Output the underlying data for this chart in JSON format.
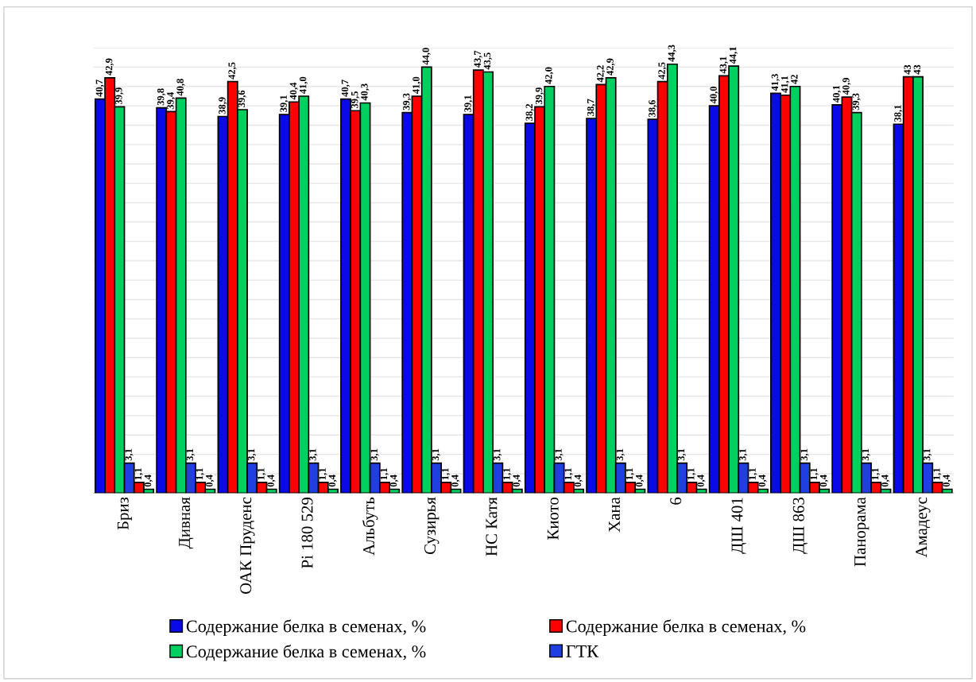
{
  "chart_data": {
    "type": "bar",
    "categories": [
      "Бриз",
      "Дивная",
      "ОАК Пруденс",
      "Pi 180 529",
      "Альбуть",
      "Сузирья",
      "НС Катя",
      "Киото",
      "Хана",
      "6",
      "ДШ 401",
      "ДШ 863",
      "Панорама",
      "Амадеус"
    ],
    "series": [
      {
        "name": "Содержание белка в семенах, %",
        "color": "#0a0ae6",
        "values": [
          40.7,
          39.8,
          38.9,
          39.1,
          40.7,
          39.3,
          39.1,
          38.2,
          38.7,
          38.6,
          40.0,
          41.3,
          40.1,
          38.1
        ],
        "value_labels": [
          "40,7",
          "39,8",
          "38,9",
          "39,1",
          "40,7",
          "39,3",
          "39,1",
          "38,2",
          "38,7",
          "38,6",
          "40,0",
          "41,3",
          "40,1",
          "38,1"
        ]
      },
      {
        "name": "Содержание белка в семенах, %",
        "color": "#ff0000",
        "values": [
          42.9,
          39.4,
          42.5,
          40.4,
          39.5,
          41.0,
          43.7,
          39.9,
          42.2,
          42.5,
          43.1,
          41.1,
          40.9,
          43
        ],
        "value_labels": [
          "42,9",
          "39,4",
          "42,5",
          "40,4",
          "39,5",
          "41,0",
          "43,7",
          "39,9",
          "42,2",
          "42,5",
          "43,1",
          "41,1",
          "40,9",
          "43"
        ]
      },
      {
        "name": "Содержание белка в семенах, %",
        "color": "#00d060",
        "values": [
          39.9,
          40.8,
          39.6,
          41.0,
          40.3,
          44.0,
          43.5,
          42.0,
          42.9,
          44.3,
          44.1,
          42,
          39.3,
          43
        ],
        "value_labels": [
          "39,9",
          "40,8",
          "39,6",
          "41,0",
          "40,3",
          "44,0",
          "43,5",
          "42,0",
          "42,9",
          "44,3",
          "44,1",
          "42",
          "39,3",
          "43"
        ]
      },
      {
        "name": "ГТК",
        "color": "#1f3fe0",
        "values": [
          3.1,
          3.1,
          3.1,
          3.1,
          3.1,
          3.1,
          3.1,
          3.1,
          3.1,
          3.1,
          3.1,
          3.1,
          3.1,
          3.1
        ],
        "value_labels": [
          "3,1",
          "3,1",
          "3,1",
          "3,1",
          "3,1",
          "3,1",
          "3,1",
          "3,1",
          "3,1",
          "3,1",
          "3,1",
          "3,1",
          "3,1",
          "3,1"
        ]
      },
      {
        "color": "#ff0000",
        "values": [
          1.1,
          1.1,
          1.1,
          1.1,
          1.1,
          1.1,
          1.1,
          1.1,
          1.1,
          1.1,
          1.1,
          1.1,
          1.1,
          1.1
        ],
        "value_labels": [
          "1,1",
          "1,1",
          "1,1",
          "1,1",
          "1,1",
          "1,1",
          "1,1",
          "1,1",
          "1,1",
          "1,1",
          "1,1",
          "1,1",
          "1,1",
          "1,1"
        ]
      },
      {
        "color": "#00d060",
        "values": [
          0.4,
          0.4,
          0.4,
          0.4,
          0.4,
          0.4,
          0.4,
          0.4,
          0.4,
          0.4,
          0.4,
          0.4,
          0.4,
          0.4
        ],
        "value_labels": [
          "0,4",
          "0,4",
          "0,4",
          "0,4",
          "0,4",
          "0,4",
          "0,4",
          "0,4",
          "0,4",
          "0,4",
          "0,4",
          "0,4",
          "0,4",
          "0,4"
        ]
      }
    ],
    "ylim": [
      0,
      46
    ],
    "yticks": [
      {
        "value": 0,
        "label": null
      },
      {
        "value": 2,
        "label": null
      },
      {
        "value": 4,
        "label": null
      },
      {
        "value": 6,
        "label": null
      },
      {
        "value": 8,
        "label": null
      },
      {
        "value": 10,
        "label": null
      },
      {
        "value": 12,
        "label": null
      },
      {
        "value": 14,
        "label": null
      },
      {
        "value": 16,
        "label": null
      },
      {
        "value": 18,
        "label": null
      },
      {
        "value": 20,
        "label": null
      },
      {
        "value": 22,
        "label": null
      },
      {
        "value": 24,
        "label": null
      },
      {
        "value": 26,
        "label": null
      },
      {
        "value": 28,
        "label": null
      },
      {
        "value": 30,
        "label": null
      },
      {
        "value": 32,
        "label": null
      },
      {
        "value": 34,
        "label": null
      },
      {
        "value": 36,
        "label": null
      },
      {
        "value": 38,
        "label": null
      },
      {
        "value": 40,
        "label": null
      },
      {
        "value": 42,
        "label": null
      },
      {
        "value": 44,
        "label": null
      },
      {
        "value": 46,
        "label": null
      }
    ],
    "tick_labels": "x",
    "grid": "y",
    "legend": "bottom"
  }
}
